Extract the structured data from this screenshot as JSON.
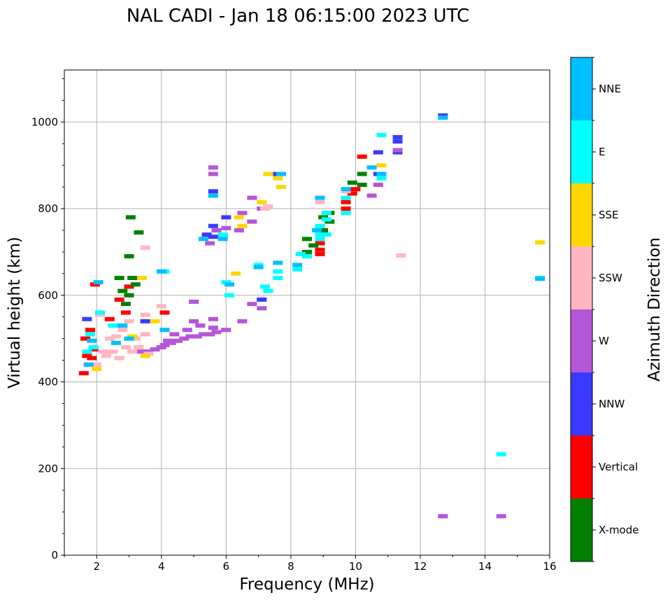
{
  "chart_data": {
    "type": "scatter",
    "title": "NAL CADI - Jan 18 06:15:00 2023 UTC",
    "xlabel": "Frequency (MHz)",
    "ylabel": "Virtual height (km)",
    "xlim": [
      1,
      16
    ],
    "ylim": [
      0,
      1120
    ],
    "xticks": [
      2,
      4,
      6,
      8,
      10,
      12,
      14,
      16
    ],
    "yticks": [
      0,
      200,
      400,
      600,
      800,
      1000
    ],
    "grid": true,
    "colorbar": {
      "label": "Azimuth Direction",
      "categories": [
        {
          "name": "X-mode",
          "color": "#008000"
        },
        {
          "name": "Vertical",
          "color": "#ff0000"
        },
        {
          "name": "NNW",
          "color": "#3a3aff"
        },
        {
          "name": "W",
          "color": "#b456d8"
        },
        {
          "name": "SSW",
          "color": "#ffb6c1"
        },
        {
          "name": "SSE",
          "color": "#ffd700"
        },
        {
          "name": "E",
          "color": "#00ffff"
        },
        {
          "name": "NNE",
          "color": "#00bfff"
        }
      ]
    },
    "series": [
      {
        "name": "Vertical",
        "points": [
          [
            1.6,
            420
          ],
          [
            1.75,
            440
          ],
          [
            1.85,
            455
          ],
          [
            1.9,
            475
          ],
          [
            1.65,
            500
          ],
          [
            1.8,
            520
          ],
          [
            1.7,
            460
          ],
          [
            1.95,
            625
          ],
          [
            2.4,
            545
          ],
          [
            2.7,
            590
          ],
          [
            2.9,
            560
          ],
          [
            3.0,
            620
          ],
          [
            4.1,
            560
          ],
          [
            8.9,
            695
          ],
          [
            8.9,
            705
          ],
          [
            8.9,
            720
          ],
          [
            9.7,
            800
          ],
          [
            9.7,
            815
          ],
          [
            9.9,
            835
          ],
          [
            10.0,
            845
          ],
          [
            10.2,
            920
          ]
        ]
      },
      {
        "name": "X-mode",
        "points": [
          [
            2.7,
            640
          ],
          [
            2.8,
            610
          ],
          [
            2.9,
            580
          ],
          [
            3.0,
            600
          ],
          [
            3.1,
            640
          ],
          [
            3.2,
            625
          ],
          [
            3.05,
            780
          ],
          [
            3.0,
            690
          ],
          [
            3.3,
            745
          ],
          [
            8.5,
            700
          ],
          [
            8.5,
            730
          ],
          [
            8.7,
            715
          ],
          [
            9.2,
            770
          ],
          [
            9.2,
            790
          ],
          [
            9.0,
            780
          ],
          [
            9.0,
            750
          ],
          [
            9.9,
            860
          ],
          [
            10.2,
            880
          ],
          [
            10.2,
            855
          ]
        ]
      },
      {
        "name": "NNW",
        "points": [
          [
            1.7,
            545
          ],
          [
            3.5,
            540
          ],
          [
            5.6,
            840
          ],
          [
            5.6,
            760
          ],
          [
            5.6,
            735
          ],
          [
            5.4,
            740
          ],
          [
            6.0,
            780
          ],
          [
            7.1,
            590
          ],
          [
            7.6,
            880
          ],
          [
            10.7,
            930
          ],
          [
            10.7,
            880
          ],
          [
            11.3,
            965
          ],
          [
            11.3,
            955
          ],
          [
            11.3,
            930
          ],
          [
            12.7,
            1015
          ]
        ]
      },
      {
        "name": "W",
        "points": [
          [
            3.4,
            470
          ],
          [
            3.6,
            470
          ],
          [
            3.8,
            475
          ],
          [
            4.0,
            480
          ],
          [
            4.1,
            485
          ],
          [
            4.3,
            490
          ],
          [
            4.5,
            495
          ],
          [
            4.7,
            500
          ],
          [
            4.9,
            505
          ],
          [
            5.1,
            505
          ],
          [
            5.3,
            510
          ],
          [
            5.5,
            510
          ],
          [
            5.7,
            515
          ],
          [
            6.0,
            520
          ],
          [
            4.4,
            510
          ],
          [
            4.8,
            520
          ],
          [
            5.2,
            530
          ],
          [
            5.6,
            525
          ],
          [
            4.2,
            495
          ],
          [
            5.0,
            540
          ],
          [
            5.6,
            545
          ],
          [
            6.5,
            540
          ],
          [
            6.8,
            580
          ],
          [
            7.1,
            570
          ],
          [
            5.0,
            585
          ],
          [
            5.6,
            895
          ],
          [
            5.6,
            880
          ],
          [
            5.7,
            750
          ],
          [
            5.5,
            720
          ],
          [
            6.0,
            755
          ],
          [
            6.4,
            750
          ],
          [
            6.5,
            790
          ],
          [
            6.8,
            770
          ],
          [
            6.8,
            825
          ],
          [
            7.1,
            800
          ],
          [
            10.5,
            830
          ],
          [
            10.7,
            855
          ],
          [
            11.3,
            935
          ],
          [
            12.7,
            90
          ],
          [
            14.5,
            90
          ]
        ]
      },
      {
        "name": "SSW",
        "points": [
          [
            2.0,
            440
          ],
          [
            2.2,
            470
          ],
          [
            2.5,
            470
          ],
          [
            2.7,
            455
          ],
          [
            2.9,
            480
          ],
          [
            3.1,
            470
          ],
          [
            3.3,
            480
          ],
          [
            3.6,
            465
          ],
          [
            2.4,
            500
          ],
          [
            2.6,
            505
          ],
          [
            2.8,
            520
          ],
          [
            3.0,
            540
          ],
          [
            3.2,
            500
          ],
          [
            3.5,
            510
          ],
          [
            3.5,
            555
          ],
          [
            3.5,
            710
          ],
          [
            4.0,
            575
          ],
          [
            2.1,
            555
          ],
          [
            2.3,
            460
          ],
          [
            7.2,
            800
          ],
          [
            7.3,
            805
          ],
          [
            8.9,
            815
          ],
          [
            9.7,
            840
          ],
          [
            11.4,
            692
          ]
        ]
      },
      {
        "name": "SSE",
        "points": [
          [
            2.0,
            430
          ],
          [
            3.1,
            505
          ],
          [
            3.4,
            640
          ],
          [
            3.8,
            540
          ],
          [
            3.5,
            460
          ],
          [
            6.3,
            650
          ],
          [
            6.5,
            760
          ],
          [
            6.4,
            780
          ],
          [
            7.1,
            815
          ],
          [
            7.3,
            880
          ],
          [
            7.7,
            850
          ],
          [
            7.6,
            870
          ],
          [
            10.8,
            900
          ],
          [
            15.7,
            722
          ]
        ]
      },
      {
        "name": "E",
        "points": [
          [
            1.7,
            470
          ],
          [
            1.8,
            510
          ],
          [
            1.9,
            480
          ],
          [
            2.1,
            560
          ],
          [
            2.5,
            530
          ],
          [
            4.1,
            655
          ],
          [
            6.0,
            630
          ],
          [
            6.1,
            600
          ],
          [
            5.9,
            740
          ],
          [
            7.0,
            670
          ],
          [
            7.2,
            620
          ],
          [
            7.3,
            610
          ],
          [
            7.6,
            640
          ],
          [
            7.6,
            655
          ],
          [
            8.2,
            660
          ],
          [
            8.3,
            695
          ],
          [
            8.5,
            690
          ],
          [
            8.9,
            730
          ],
          [
            8.9,
            740
          ],
          [
            8.9,
            760
          ],
          [
            9.1,
            740
          ],
          [
            9.1,
            775
          ],
          [
            9.1,
            790
          ],
          [
            9.7,
            790
          ],
          [
            9.7,
            825
          ],
          [
            10.8,
            870
          ],
          [
            10.8,
            970
          ],
          [
            14.5,
            233
          ],
          [
            15.7,
            640
          ]
        ]
      },
      {
        "name": "NNE",
        "points": [
          [
            1.75,
            440
          ],
          [
            1.85,
            495
          ],
          [
            2.05,
            630
          ],
          [
            2.6,
            490
          ],
          [
            2.8,
            530
          ],
          [
            3.0,
            500
          ],
          [
            4.0,
            655
          ],
          [
            4.1,
            520
          ],
          [
            5.3,
            730
          ],
          [
            5.6,
            830
          ],
          [
            5.9,
            730
          ],
          [
            6.1,
            625
          ],
          [
            7.0,
            665
          ],
          [
            7.6,
            675
          ],
          [
            7.7,
            880
          ],
          [
            8.2,
            670
          ],
          [
            8.8,
            750
          ],
          [
            8.9,
            825
          ],
          [
            9.7,
            845
          ],
          [
            10.5,
            895
          ],
          [
            10.8,
            880
          ],
          [
            12.7,
            1010
          ],
          [
            15.7,
            638
          ]
        ]
      }
    ]
  }
}
